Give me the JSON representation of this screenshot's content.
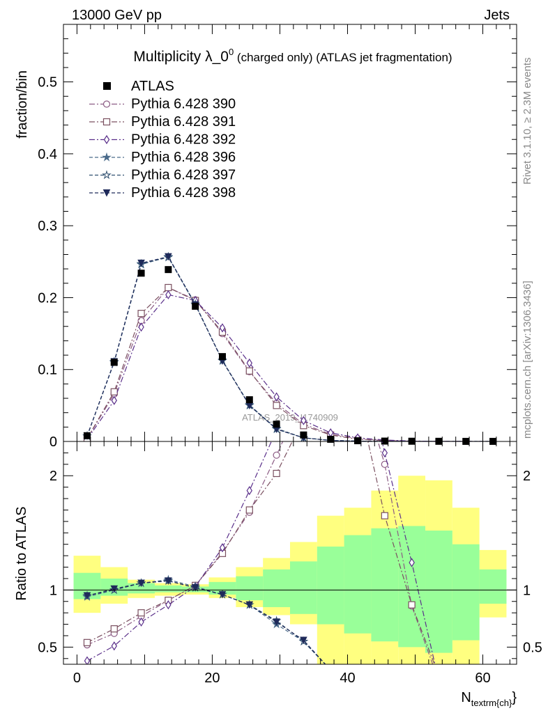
{
  "header": {
    "left": "13000 GeV pp",
    "right": "Jets",
    "side_top": "Rivet 3.1.10, ≥ 2.3M events",
    "side_bottom": "mcplots.cern.ch [arXiv:1306.3436]"
  },
  "watermark": "ATLAS_2019_I1740909",
  "colors": {
    "band_yellow": "#ffff80",
    "band_green": "#99ff99",
    "data": "#000000"
  },
  "chart_data": [
    {
      "type": "line",
      "title": "Multiplicity λ_0",
      "title_sup": "0",
      "title_rest": " (charged only) (ATLAS jet fragmentation)",
      "ylabel": "fraction/bin",
      "xlim": [
        -2,
        65
      ],
      "ylim": [
        0,
        0.58
      ],
      "yticks": [
        0,
        0.1,
        0.2,
        0.3,
        0.4,
        0.5
      ],
      "ytick_labels": [
        "0",
        "0.1",
        "0.2",
        "0.3",
        "0.4",
        "0.5"
      ],
      "legend_position": "top-left",
      "data_series": {
        "name": "ATLAS",
        "x": [
          1.5,
          5.5,
          9.5,
          13.5,
          17.5,
          21.5,
          25.5,
          29.5,
          33.5,
          37.5,
          41.5,
          45.5,
          49.5,
          53.5,
          57.5,
          61.5
        ],
        "y": [
          0.008,
          0.11,
          0.234,
          0.239,
          0.188,
          0.118,
          0.058,
          0.024,
          0.009,
          0.003,
          0.001,
          0.0005,
          0.0003,
          0.0002,
          0.0001,
          0.0001
        ]
      },
      "series": [
        {
          "name": "Pythia 6.428 390",
          "color": "#8b5a83",
          "marker": "circle-open",
          "dash": "8,3,2,3",
          "y": [
            0.004,
            0.066,
            0.168,
            0.214,
            0.197,
            0.15,
            0.097,
            0.053,
            0.024,
            0.01,
            0.004,
            0.0015,
            0.0005,
            0.0002,
            0.0001,
            0
          ]
        },
        {
          "name": "Pythia 6.428 391",
          "color": "#7a4f5f",
          "marker": "square-open",
          "dash": "8,3,2,3",
          "y": [
            0.004,
            0.069,
            0.178,
            0.214,
            0.196,
            0.152,
            0.098,
            0.05,
            0.022,
            0.009,
            0.003,
            0.0012,
            0.0004,
            0.0002,
            0.0001,
            0
          ]
        },
        {
          "name": "Pythia 6.428 392",
          "color": "#5a2f8a",
          "marker": "diamond-open",
          "dash": "8,3,2,3",
          "y": [
            0.003,
            0.057,
            0.159,
            0.204,
            0.196,
            0.158,
            0.109,
            0.062,
            0.029,
            0.012,
            0.005,
            0.002,
            0.0006,
            0.0002,
            0.0001,
            0
          ]
        },
        {
          "name": "Pythia 6.428 396",
          "color": "#4a6a8a",
          "marker": "star-filled",
          "dash": "5,3",
          "y": [
            0.0075,
            0.11,
            0.246,
            0.257,
            0.191,
            0.112,
            0.051,
            0.017,
            0.005,
            0.0015,
            0.0005,
            0.0002,
            0.0001,
            0,
            0,
            0
          ]
        },
        {
          "name": "Pythia 6.428 397",
          "color": "#2f4f6f",
          "marker": "star-open",
          "dash": "5,3",
          "y": [
            0.0076,
            0.111,
            0.247,
            0.256,
            0.19,
            0.113,
            0.05,
            0.018,
            0.005,
            0.0015,
            0.0005,
            0.0002,
            0.0001,
            0,
            0,
            0
          ]
        },
        {
          "name": "Pythia 6.428 398",
          "color": "#1f2a5a",
          "marker": "triangle-down-filled",
          "dash": "5,3",
          "y": [
            0.0077,
            0.111,
            0.248,
            0.257,
            0.19,
            0.112,
            0.05,
            0.017,
            0.005,
            0.0014,
            0.0005,
            0.0002,
            0.0001,
            0,
            0,
            0
          ]
        }
      ]
    },
    {
      "type": "line",
      "ylabel": "Ratio to ATLAS",
      "xlabel": "N",
      "xlabel_sub": "textrm{ch}",
      "xlabel_close": "}",
      "xlim": [
        -2,
        65
      ],
      "ylim": [
        0.35,
        2.3
      ],
      "xticks": [
        0,
        20,
        40,
        60
      ],
      "xtick_labels": [
        "0",
        "20",
        "40",
        "60"
      ],
      "yticks": [
        0.5,
        1,
        2
      ],
      "ytick_labels": [
        "0.5",
        "1",
        "2"
      ],
      "band_edges": [
        -0.5,
        3.5,
        7.5,
        11.5,
        15.5,
        19.5,
        23.5,
        27.5,
        31.5,
        35.5,
        39.5,
        43.5,
        47.5,
        51.5,
        55.5,
        59.5,
        63.5
      ],
      "band_yellow_lo": [
        0.8,
        0.88,
        0.93,
        0.95,
        0.96,
        0.93,
        0.85,
        0.78,
        0.7,
        0.35,
        0.35,
        0.35,
        0.35,
        0.35,
        0.35,
        0.76
      ],
      "band_yellow_hi": [
        1.3,
        1.2,
        1.09,
        1.06,
        1.05,
        1.11,
        1.2,
        1.28,
        1.42,
        1.65,
        1.72,
        1.87,
        2.0,
        1.96,
        1.72,
        1.35
      ],
      "band_green_lo": [
        0.92,
        0.95,
        0.97,
        0.98,
        0.98,
        0.96,
        0.91,
        0.85,
        0.79,
        0.7,
        0.62,
        0.55,
        0.5,
        0.45,
        0.56,
        0.88
      ],
      "band_green_hi": [
        1.15,
        1.1,
        1.06,
        1.04,
        1.03,
        1.07,
        1.12,
        1.18,
        1.25,
        1.38,
        1.48,
        1.54,
        1.56,
        1.52,
        1.4,
        1.18
      ],
      "data_x": [
        1.5,
        5.5,
        9.5,
        13.5,
        17.5,
        21.5,
        25.5,
        29.5,
        33.5,
        37.5,
        41.5,
        45.5,
        49.5,
        53.5,
        57.5,
        61.5
      ],
      "ratio_series": [
        {
          "name": "Pythia 6.428 390",
          "y": [
            0.52,
            0.62,
            0.77,
            0.91,
            1.04,
            1.33,
            1.68,
            2.18,
            2.7,
            3.2,
            2.9,
            2.1,
            0.86,
            0.2,
            0.1,
            0.1
          ]
        },
        {
          "name": "Pythia 6.428 391",
          "y": [
            0.54,
            0.66,
            0.8,
            0.91,
            1.04,
            1.32,
            1.7,
            2.02,
            2.5,
            3.0,
            2.7,
            1.65,
            0.87,
            0.25,
            0.1,
            0.1
          ]
        },
        {
          "name": "Pythia 6.428 392",
          "y": [
            0.38,
            0.51,
            0.72,
            0.87,
            1.03,
            1.37,
            1.87,
            2.4,
            3.0,
            3.5,
            3.2,
            2.2,
            1.24,
            0.2,
            0.1,
            0.1
          ]
        },
        {
          "name": "Pythia 6.428 396",
          "y": [
            0.94,
            1.0,
            1.06,
            1.09,
            1.03,
            0.96,
            0.87,
            0.7,
            0.55,
            0.3,
            0.2,
            0.1,
            0.05,
            0.05,
            0.05,
            0.05
          ]
        },
        {
          "name": "Pythia 6.428 397",
          "y": [
            0.95,
            1.0,
            1.06,
            1.08,
            1.02,
            0.96,
            0.87,
            0.73,
            0.55,
            0.3,
            0.2,
            0.1,
            0.05,
            0.05,
            0.05,
            0.05
          ]
        },
        {
          "name": "Pythia 6.428 398",
          "y": [
            0.95,
            1.01,
            1.06,
            1.08,
            1.02,
            0.96,
            0.87,
            0.72,
            0.56,
            0.3,
            0.2,
            0.1,
            0.05,
            0.05,
            0.05,
            0.05
          ]
        }
      ]
    }
  ]
}
